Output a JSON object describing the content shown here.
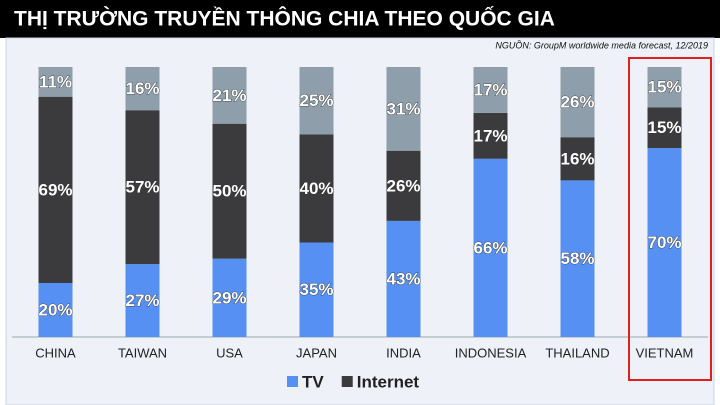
{
  "chart_data": {
    "type": "stacked-bar",
    "title": "THỊ TRƯỜNG TRUYỀN THÔNG CHIA THEO QUỐC GIA",
    "source": "NGUỒN: GroupM worldwide media forecast, 12/2019",
    "categories": [
      "CHINA",
      "TAIWAN",
      "USA",
      "JAPAN",
      "INDIA",
      "INDONESIA",
      "THAILAND",
      "VIETNAM"
    ],
    "series": [
      {
        "name": "TV",
        "color": "#5590f2",
        "values": [
          20,
          27,
          29,
          35,
          43,
          66,
          58,
          70
        ],
        "value_labels": [
          "20%",
          "27%",
          "29%",
          "35%",
          "43%",
          "66%",
          "58%",
          "70%"
        ]
      },
      {
        "name": "Internet",
        "color": "#3b3b3d",
        "values": [
          69,
          57,
          50,
          40,
          26,
          17,
          16,
          15
        ],
        "value_labels": [
          "69%",
          "57%",
          "50%",
          "40%",
          "26%",
          "17%",
          "16%",
          "15%"
        ]
      },
      {
        "color": "#8e9fab",
        "values": [
          11,
          16,
          21,
          25,
          31,
          17,
          26,
          15
        ],
        "value_labels": [
          "11%",
          "16%",
          "21%",
          "25%",
          "31%",
          "17%",
          "26%",
          "15%"
        ]
      }
    ],
    "ylim": [
      0,
      100
    ]
  }
}
